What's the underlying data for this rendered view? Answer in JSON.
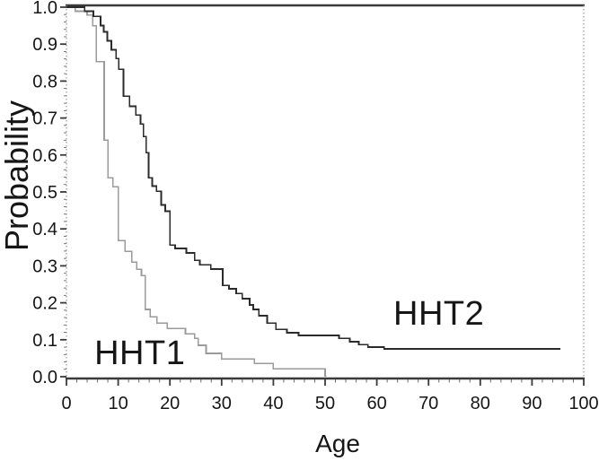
{
  "figure": {
    "background": "#ffffff",
    "frame_color": "#3a3a3a",
    "minor_tick_color": "#6a6a6a",
    "spine_dotted_color": "#9a9a9a",
    "tick_label_color": "#161616"
  },
  "chart_data": {
    "type": "line",
    "subtype": "kaplan-meier-step-survival",
    "title": "",
    "xlabel": "Age",
    "ylabel": "Probability",
    "xlim": [
      0,
      100
    ],
    "ylim": [
      0.0,
      1.0
    ],
    "grid": false,
    "legend_position": "inline-annotations",
    "x_ticks": [
      {
        "value": 0,
        "label": "0"
      },
      {
        "value": 10,
        "label": "10"
      },
      {
        "value": 20,
        "label": "20"
      },
      {
        "value": 30,
        "label": "30"
      },
      {
        "value": 40,
        "label": "40"
      },
      {
        "value": 50,
        "label": "50"
      },
      {
        "value": 60,
        "label": "60"
      },
      {
        "value": 70,
        "label": "70"
      },
      {
        "value": 80,
        "label": "80"
      },
      {
        "value": 90,
        "label": "90"
      },
      {
        "value": 100,
        "label": "100"
      }
    ],
    "y_ticks": [
      {
        "value": 0.0,
        "label": "0.0"
      },
      {
        "value": 0.1,
        "label": "0.1"
      },
      {
        "value": 0.2,
        "label": "0.2"
      },
      {
        "value": 0.3,
        "label": "0.3"
      },
      {
        "value": 0.4,
        "label": "0.4"
      },
      {
        "value": 0.5,
        "label": "0.5"
      },
      {
        "value": 0.6,
        "label": "0.6"
      },
      {
        "value": 0.7,
        "label": "0.7"
      },
      {
        "value": 0.8,
        "label": "0.8"
      },
      {
        "value": 0.9,
        "label": "0.9"
      },
      {
        "value": 1.0,
        "label": "1.0"
      }
    ],
    "x_minor_tick_step": 2,
    "y_minor_tick_step": 0.02,
    "series": [
      {
        "name": "HHT1",
        "color": "#9b9b9b",
        "line_width": 1.6,
        "annotation": {
          "text": "HHT1",
          "age": 5.4,
          "prob": 0.034
        },
        "start": [
          0,
          1.0
        ],
        "steps": [
          [
            1.7,
            0.989
          ],
          [
            4.0,
            0.979
          ],
          [
            5.1,
            0.95
          ],
          [
            5.8,
            0.853
          ],
          [
            7.3,
            0.64
          ],
          [
            8.0,
            0.538
          ],
          [
            9.0,
            0.514
          ],
          [
            10.0,
            0.368
          ],
          [
            11.3,
            0.339
          ],
          [
            12.6,
            0.31
          ],
          [
            13.6,
            0.291
          ],
          [
            14.5,
            0.274
          ],
          [
            15.2,
            0.182
          ],
          [
            16.2,
            0.162
          ],
          [
            17.5,
            0.145
          ],
          [
            19.5,
            0.13
          ],
          [
            23.0,
            0.116
          ],
          [
            24.8,
            0.104
          ],
          [
            25.5,
            0.085
          ],
          [
            27.0,
            0.063
          ],
          [
            30.0,
            0.048
          ],
          [
            36.3,
            0.036
          ],
          [
            40.0,
            0.021
          ],
          [
            50.0,
            0.002
          ]
        ],
        "end_age": 50.3
      },
      {
        "name": "HHT2",
        "color": "#2b2b2b",
        "line_width": 1.8,
        "annotation": {
          "text": "HHT2",
          "age": 63.2,
          "prob": 0.141
        },
        "start": [
          0,
          1.0
        ],
        "steps": [
          [
            3.5,
            0.989
          ],
          [
            5.2,
            0.975
          ],
          [
            6.6,
            0.95
          ],
          [
            7.2,
            0.933
          ],
          [
            7.9,
            0.909
          ],
          [
            8.7,
            0.885
          ],
          [
            9.6,
            0.861
          ],
          [
            10.1,
            0.832
          ],
          [
            11.0,
            0.759
          ],
          [
            12.2,
            0.732
          ],
          [
            13.4,
            0.708
          ],
          [
            14.3,
            0.684
          ],
          [
            14.9,
            0.65
          ],
          [
            15.4,
            0.606
          ],
          [
            15.9,
            0.538
          ],
          [
            16.6,
            0.516
          ],
          [
            17.4,
            0.502
          ],
          [
            18.3,
            0.465
          ],
          [
            19.1,
            0.448
          ],
          [
            20.0,
            0.356
          ],
          [
            21.0,
            0.347
          ],
          [
            23.2,
            0.335
          ],
          [
            24.8,
            0.315
          ],
          [
            25.8,
            0.303
          ],
          [
            27.9,
            0.291
          ],
          [
            30.2,
            0.247
          ],
          [
            31.4,
            0.238
          ],
          [
            32.8,
            0.225
          ],
          [
            34.0,
            0.211
          ],
          [
            35.4,
            0.194
          ],
          [
            36.1,
            0.182
          ],
          [
            37.2,
            0.165
          ],
          [
            38.8,
            0.145
          ],
          [
            40.5,
            0.128
          ],
          [
            42.6,
            0.119
          ],
          [
            44.9,
            0.112
          ],
          [
            52.7,
            0.104
          ],
          [
            54.8,
            0.095
          ],
          [
            56.5,
            0.087
          ],
          [
            58.3,
            0.08
          ],
          [
            61.4,
            0.075
          ]
        ],
        "end_age": 95.5
      }
    ]
  }
}
